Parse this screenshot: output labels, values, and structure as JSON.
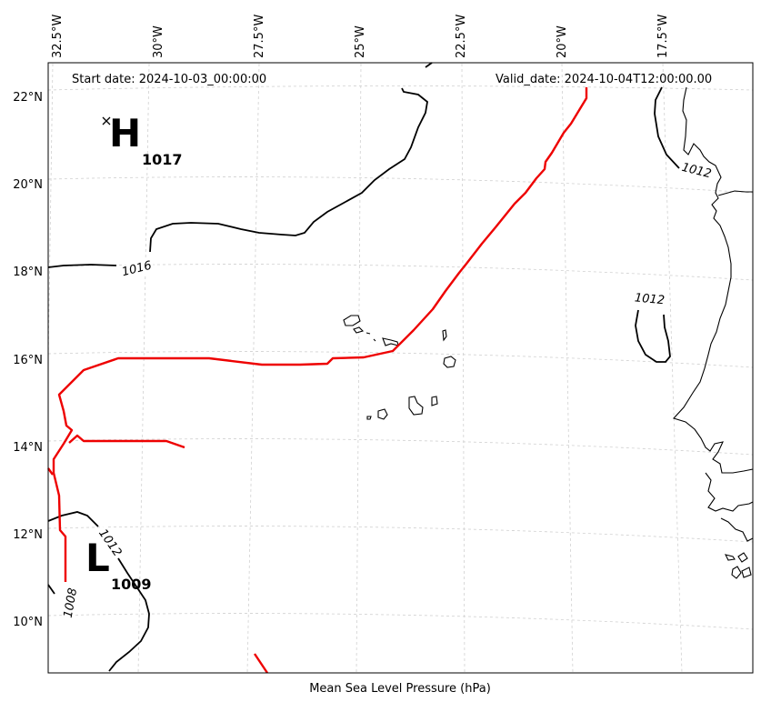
{
  "header": {
    "start_date": "Start date: 2024-10-03_00:00:00",
    "valid_date": "Valid_date: 2024-10-04T12:00:00.00"
  },
  "footer": {
    "caption": "Mean Sea Level Pressure (hPa)"
  },
  "axes": {
    "lon_ticks": [
      "32.5°W",
      "30°W",
      "27.5°W",
      "25°W",
      "22.5°W",
      "20°W",
      "17.5°W"
    ],
    "lat_ticks": [
      "22°N",
      "20°N",
      "18°N",
      "16°N",
      "14°N",
      "12°N",
      "10°N"
    ]
  },
  "contour_labels": [
    "1016",
    "1012",
    "1012",
    "1012",
    "1008"
  ],
  "pressure_systems": [
    {
      "letter": "H",
      "value": "1017"
    },
    {
      "letter": "L",
      "value": "1009"
    }
  ],
  "colors": {
    "track": "#ee0000",
    "contour": "#000000",
    "grid": "#cccccc",
    "coast": "#000000"
  }
}
